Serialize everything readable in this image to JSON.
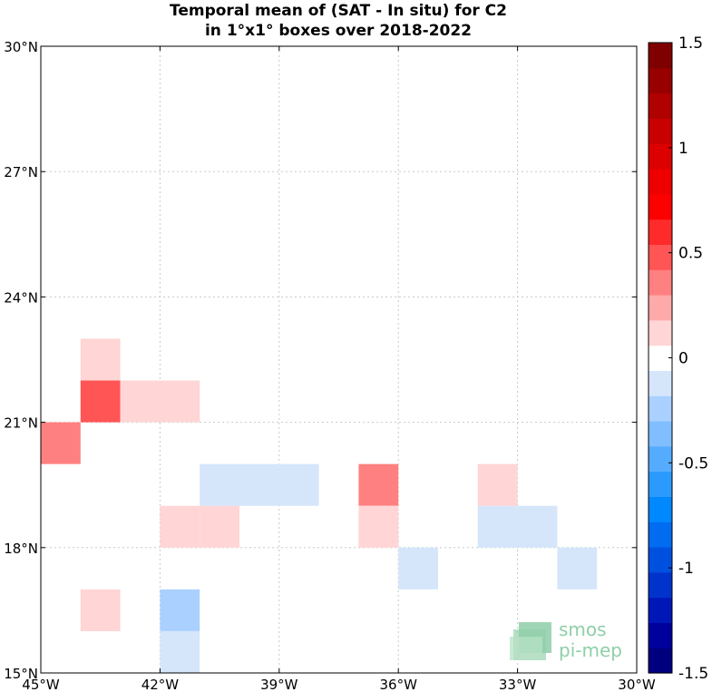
{
  "chart_data": {
    "type": "heatmap",
    "title_line1": "Temporal mean of (SAT - In situ) for C2",
    "title_line2": "in 1°x1° boxes over 2018-2022",
    "xlim": [
      -45,
      -30
    ],
    "ylim": [
      15,
      30
    ],
    "x_ticks": [
      {
        "value": -45,
        "label": "45°W"
      },
      {
        "value": -42,
        "label": "42°W"
      },
      {
        "value": -39,
        "label": "39°W"
      },
      {
        "value": -36,
        "label": "36°W"
      },
      {
        "value": -33,
        "label": "33°W"
      },
      {
        "value": -30,
        "label": "30°W"
      }
    ],
    "y_ticks": [
      {
        "value": 15,
        "label": "15°N"
      },
      {
        "value": 18,
        "label": "18°N"
      },
      {
        "value": 21,
        "label": "21°N"
      },
      {
        "value": 24,
        "label": "24°N"
      },
      {
        "value": 27,
        "label": "27°N"
      },
      {
        "value": 30,
        "label": "30°N"
      }
    ],
    "grid": true,
    "colorbar": {
      "min": -1.5,
      "max": 1.5,
      "ticks": [
        {
          "value": 1.5,
          "label": "1.5"
        },
        {
          "value": 1.0,
          "label": "1"
        },
        {
          "value": 0.5,
          "label": "0.5"
        },
        {
          "value": 0.0,
          "label": "0"
        },
        {
          "value": -0.5,
          "label": "-0.5"
        },
        {
          "value": -1.0,
          "label": "-1"
        },
        {
          "value": -1.5,
          "label": "-1.5"
        }
      ],
      "colors": [
        "#00007f",
        "#00009c",
        "#0017b8",
        "#0033cc",
        "#0050e0",
        "#006cf0",
        "#0088ff",
        "#2b9aff",
        "#55acff",
        "#80beff",
        "#aad0ff",
        "#d5e6fb",
        "#ffffff",
        "#ffd5d5",
        "#ffaaaa",
        "#ff8080",
        "#ff5555",
        "#ff2b2b",
        "#ff0000",
        "#ee0000",
        "#dd0000",
        "#c80000",
        "#b00000",
        "#980000",
        "#7f0000"
      ]
    },
    "cells": [
      {
        "lon": -44,
        "lat": 22,
        "value": 0.15
      },
      {
        "lon": -44,
        "lat": 21,
        "value": 0.45
      },
      {
        "lon": -43,
        "lat": 21,
        "value": 0.15
      },
      {
        "lon": -42,
        "lat": 21,
        "value": 0.15
      },
      {
        "lon": -45,
        "lat": 20,
        "value": 0.3
      },
      {
        "lon": -41,
        "lat": 19,
        "value": -0.15
      },
      {
        "lon": -40,
        "lat": 19,
        "value": -0.15
      },
      {
        "lon": -39,
        "lat": 19,
        "value": -0.15
      },
      {
        "lon": -37,
        "lat": 19,
        "value": 0.35
      },
      {
        "lon": -34,
        "lat": 19,
        "value": 0.15
      },
      {
        "lon": -42,
        "lat": 18,
        "value": 0.15
      },
      {
        "lon": -41,
        "lat": 18,
        "value": 0.15
      },
      {
        "lon": -37,
        "lat": 18,
        "value": 0.15
      },
      {
        "lon": -34,
        "lat": 18,
        "value": -0.15
      },
      {
        "lon": -33,
        "lat": 18,
        "value": -0.15
      },
      {
        "lon": -36,
        "lat": 17,
        "value": -0.15
      },
      {
        "lon": -32,
        "lat": 17,
        "value": -0.15
      },
      {
        "lon": -44,
        "lat": 16,
        "value": 0.15
      },
      {
        "lon": -42,
        "lat": 16,
        "value": -0.3
      },
      {
        "lon": -42,
        "lat": 15,
        "value": -0.15
      }
    ]
  },
  "logo": {
    "line1": "smos",
    "line2": "pi-mep"
  }
}
